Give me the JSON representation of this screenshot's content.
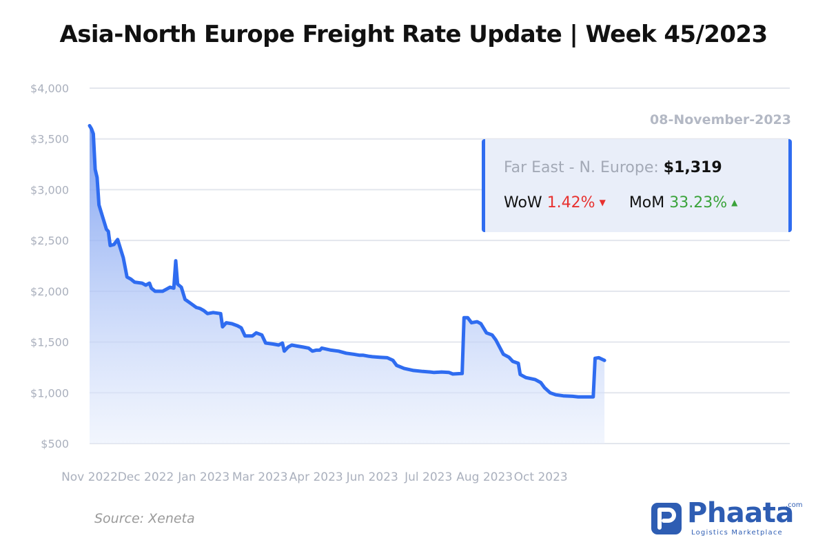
{
  "header": {
    "title": "Asia-North Europe Freight Rate Update | Week 45/2023"
  },
  "infobox": {
    "date": "08-November-2023",
    "route_label": "Far East - N. Europe:",
    "price": "$1,319",
    "wow_label": "WoW",
    "wow_value": "1.42%",
    "wow_direction": "down",
    "mom_label": "MoM",
    "mom_value": "33.23%",
    "mom_direction": "up"
  },
  "footer": {
    "source": "Source: Xeneta",
    "logo_name": "Phaata",
    "logo_suffix": ".com",
    "logo_tagline": "Logistics Marketplace"
  },
  "colors": {
    "line": "#2f6cf0",
    "area_top": "#6e95f0",
    "area_bottom": "#e7eefc",
    "grid": "#e3e6ed",
    "down": "#e8312f",
    "up": "#3aa33a",
    "brand": "#2e5db3"
  },
  "icons": [
    "caret-down-icon",
    "caret-up-icon",
    "phaata-logo-icon"
  ],
  "chart_data": {
    "type": "area",
    "title": "",
    "xlabel": "",
    "ylabel": "",
    "ylim": [
      500,
      4000
    ],
    "y_ticks": [
      {
        "value": 4000,
        "label": "$4,000"
      },
      {
        "value": 3500,
        "label": "$3,500"
      },
      {
        "value": 3000,
        "label": "$3,000"
      },
      {
        "value": 2500,
        "label": "$2,500"
      },
      {
        "value": 2000,
        "label": "$2,000"
      },
      {
        "value": 1500,
        "label": "$1,500"
      },
      {
        "value": 1000,
        "label": "$1,000"
      },
      {
        "value": 500,
        "label": "$500"
      }
    ],
    "x_range": [
      "2022-11-01",
      "2023-11-10"
    ],
    "x_ticks": [
      {
        "date": "2022-11-01",
        "label": "Nov 2022"
      },
      {
        "date": "2022-12-01",
        "label": "Dec 2022"
      },
      {
        "date": "2023-01-01",
        "label": "Jan 2023"
      },
      {
        "date": "2023-01-31",
        "label": "Mar 2023"
      },
      {
        "date": "2023-03-02",
        "label": "Apr 2023"
      },
      {
        "date": "2023-04-01",
        "label": "Jun 2023"
      },
      {
        "date": "2023-05-01",
        "label": "Jul 2023"
      },
      {
        "date": "2023-05-31",
        "label": "Aug 2023"
      },
      {
        "date": "2023-06-30",
        "label": "Oct 2023"
      }
    ],
    "grid": true,
    "series": [
      {
        "values": [
          {
            "x": "2022-11-01",
            "y": 3630
          },
          {
            "x": "2022-11-02",
            "y": 3600
          },
          {
            "x": "2022-11-03",
            "y": 3550
          },
          {
            "x": "2022-11-04",
            "y": 3200
          },
          {
            "x": "2022-11-05",
            "y": 3120
          },
          {
            "x": "2022-11-06",
            "y": 2850
          },
          {
            "x": "2022-11-08",
            "y": 2730
          },
          {
            "x": "2022-11-10",
            "y": 2610
          },
          {
            "x": "2022-11-11",
            "y": 2590
          },
          {
            "x": "2022-11-12",
            "y": 2450
          },
          {
            "x": "2022-11-14",
            "y": 2460
          },
          {
            "x": "2022-11-16",
            "y": 2510
          },
          {
            "x": "2022-11-19",
            "y": 2330
          },
          {
            "x": "2022-11-21",
            "y": 2140
          },
          {
            "x": "2022-11-23",
            "y": 2120
          },
          {
            "x": "2022-11-25",
            "y": 2090
          },
          {
            "x": "2022-11-29",
            "y": 2080
          },
          {
            "x": "2022-12-01",
            "y": 2060
          },
          {
            "x": "2022-12-03",
            "y": 2080
          },
          {
            "x": "2022-12-04",
            "y": 2030
          },
          {
            "x": "2022-12-06",
            "y": 2000
          },
          {
            "x": "2022-12-10",
            "y": 2000
          },
          {
            "x": "2022-12-12",
            "y": 2020
          },
          {
            "x": "2022-12-14",
            "y": 2040
          },
          {
            "x": "2022-12-16",
            "y": 2030
          },
          {
            "x": "2022-12-17",
            "y": 2300
          },
          {
            "x": "2022-12-18",
            "y": 2070
          },
          {
            "x": "2022-12-20",
            "y": 2040
          },
          {
            "x": "2022-12-22",
            "y": 1920
          },
          {
            "x": "2022-12-25",
            "y": 1880
          },
          {
            "x": "2022-12-28",
            "y": 1840
          },
          {
            "x": "2022-12-30",
            "y": 1830
          },
          {
            "x": "2023-01-01",
            "y": 1810
          },
          {
            "x": "2023-01-03",
            "y": 1780
          },
          {
            "x": "2023-01-06",
            "y": 1790
          },
          {
            "x": "2023-01-10",
            "y": 1780
          },
          {
            "x": "2023-01-11",
            "y": 1650
          },
          {
            "x": "2023-01-13",
            "y": 1690
          },
          {
            "x": "2023-01-16",
            "y": 1680
          },
          {
            "x": "2023-01-19",
            "y": 1660
          },
          {
            "x": "2023-01-21",
            "y": 1640
          },
          {
            "x": "2023-01-23",
            "y": 1560
          },
          {
            "x": "2023-01-25",
            "y": 1560
          },
          {
            "x": "2023-01-27",
            "y": 1560
          },
          {
            "x": "2023-01-29",
            "y": 1590
          },
          {
            "x": "2023-02-01",
            "y": 1570
          },
          {
            "x": "2023-02-03",
            "y": 1490
          },
          {
            "x": "2023-02-07",
            "y": 1480
          },
          {
            "x": "2023-02-10",
            "y": 1470
          },
          {
            "x": "2023-02-12",
            "y": 1490
          },
          {
            "x": "2023-02-13",
            "y": 1410
          },
          {
            "x": "2023-02-15",
            "y": 1450
          },
          {
            "x": "2023-02-17",
            "y": 1470
          },
          {
            "x": "2023-02-20",
            "y": 1460
          },
          {
            "x": "2023-02-23",
            "y": 1450
          },
          {
            "x": "2023-02-26",
            "y": 1440
          },
          {
            "x": "2023-02-28",
            "y": 1410
          },
          {
            "x": "2023-03-02",
            "y": 1420
          },
          {
            "x": "2023-03-04",
            "y": 1420
          },
          {
            "x": "2023-03-05",
            "y": 1440
          },
          {
            "x": "2023-03-10",
            "y": 1420
          },
          {
            "x": "2023-03-14",
            "y": 1410
          },
          {
            "x": "2023-03-18",
            "y": 1390
          },
          {
            "x": "2023-03-22",
            "y": 1380
          },
          {
            "x": "2023-03-25",
            "y": 1370
          },
          {
            "x": "2023-03-27",
            "y": 1370
          },
          {
            "x": "2023-03-30",
            "y": 1360
          },
          {
            "x": "2023-04-01",
            "y": 1355
          },
          {
            "x": "2023-04-05",
            "y": 1350
          },
          {
            "x": "2023-04-09",
            "y": 1345
          },
          {
            "x": "2023-04-12",
            "y": 1320
          },
          {
            "x": "2023-04-14",
            "y": 1270
          },
          {
            "x": "2023-04-18",
            "y": 1240
          },
          {
            "x": "2023-04-23",
            "y": 1220
          },
          {
            "x": "2023-04-28",
            "y": 1210
          },
          {
            "x": "2023-05-02",
            "y": 1205
          },
          {
            "x": "2023-05-04",
            "y": 1200
          },
          {
            "x": "2023-05-08",
            "y": 1205
          },
          {
            "x": "2023-05-12",
            "y": 1200
          },
          {
            "x": "2023-05-14",
            "y": 1185
          },
          {
            "x": "2023-05-19",
            "y": 1190
          },
          {
            "x": "2023-05-20",
            "y": 1740
          },
          {
            "x": "2023-05-22",
            "y": 1740
          },
          {
            "x": "2023-05-24",
            "y": 1690
          },
          {
            "x": "2023-05-27",
            "y": 1700
          },
          {
            "x": "2023-05-29",
            "y": 1680
          },
          {
            "x": "2023-06-01",
            "y": 1590
          },
          {
            "x": "2023-06-04",
            "y": 1570
          },
          {
            "x": "2023-06-06",
            "y": 1520
          },
          {
            "x": "2023-06-08",
            "y": 1450
          },
          {
            "x": "2023-06-10",
            "y": 1380
          },
          {
            "x": "2023-06-13",
            "y": 1350
          },
          {
            "x": "2023-06-15",
            "y": 1310
          },
          {
            "x": "2023-06-18",
            "y": 1290
          },
          {
            "x": "2023-06-19",
            "y": 1180
          },
          {
            "x": "2023-06-22",
            "y": 1150
          },
          {
            "x": "2023-06-27",
            "y": 1130
          },
          {
            "x": "2023-06-30",
            "y": 1100
          },
          {
            "x": "2023-07-02",
            "y": 1050
          },
          {
            "x": "2023-07-05",
            "y": 1000
          },
          {
            "x": "2023-07-08",
            "y": 980
          },
          {
            "x": "2023-07-12",
            "y": 970
          },
          {
            "x": "2023-07-17",
            "y": 965
          },
          {
            "x": "2023-07-20",
            "y": 960
          },
          {
            "x": "2023-07-28",
            "y": 960
          },
          {
            "x": "2023-07-29",
            "y": 1340
          },
          {
            "x": "2023-07-31",
            "y": 1345
          },
          {
            "x": "2023-08-03",
            "y": 1319
          }
        ]
      }
    ]
  }
}
